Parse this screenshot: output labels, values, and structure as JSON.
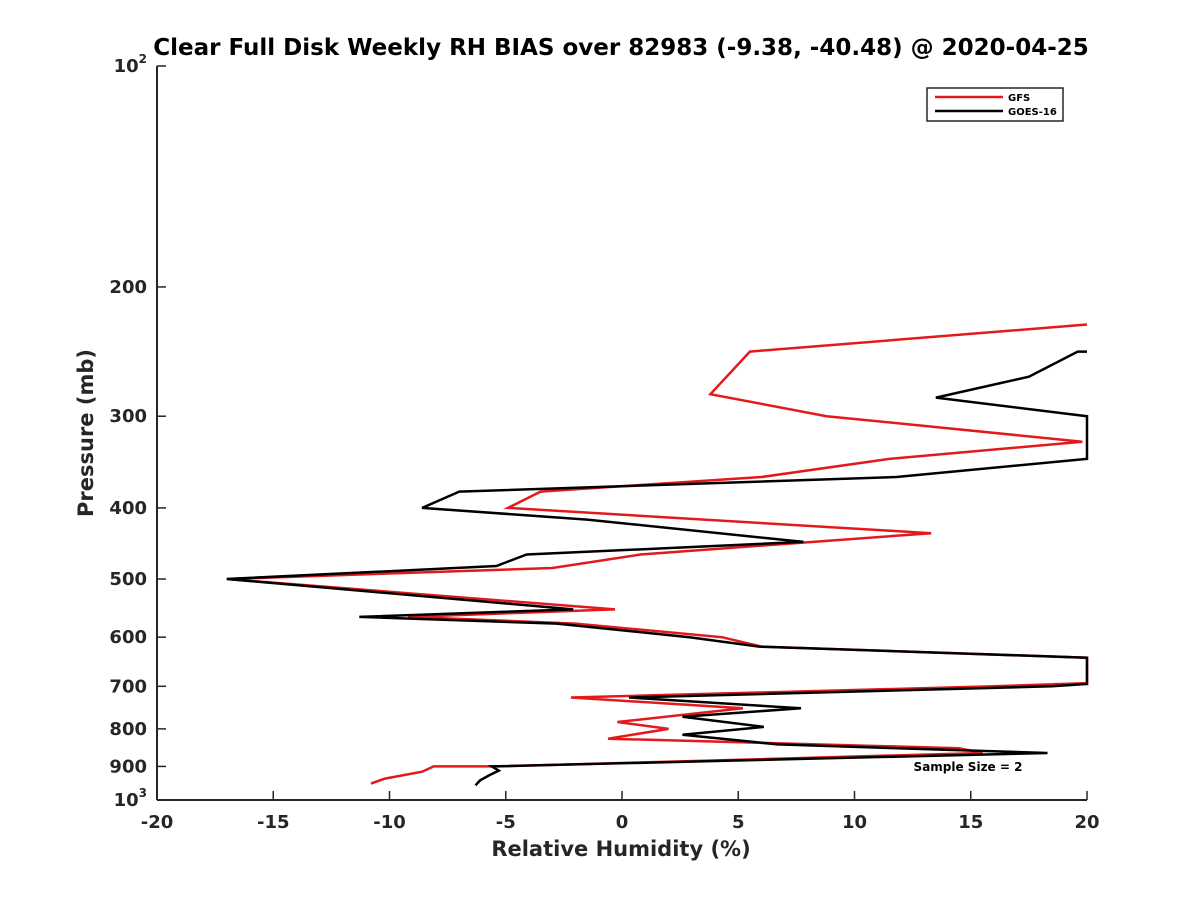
{
  "chart_data": {
    "type": "line",
    "title": "Clear Full Disk Weekly RH BIAS over 82983 (-9.38, -40.48) @ 2020-04-25",
    "xlabel": "Relative Humidity (%)",
    "ylabel": "Pressure (mb)",
    "xlim": [
      -20,
      20
    ],
    "ylim": [
      100,
      1000
    ],
    "yscale": "log",
    "y_reversed": true,
    "x_ticks": [
      -20,
      -15,
      -10,
      -5,
      0,
      5,
      10,
      15,
      20
    ],
    "x_tick_labels": [
      "-20",
      "-15",
      "-10",
      "-5",
      "0",
      "5",
      "10",
      "15",
      "20"
    ],
    "y_ticks": [
      200,
      300,
      400,
      500,
      600,
      700,
      800,
      900
    ],
    "y_tick_labels": [
      "200",
      "300",
      "400",
      "500",
      "600",
      "700",
      "800",
      "900"
    ],
    "y_end_ticks": [
      {
        "value": 100,
        "base": "10",
        "exp": "2"
      },
      {
        "value": 1000,
        "base": "10",
        "exp": "3"
      }
    ],
    "legend": {
      "position": "top-right",
      "entries": [
        "GFS",
        "GOES-16"
      ]
    },
    "annotation": "Sample Size = 2",
    "series": [
      {
        "name": "GFS",
        "color": "#e31a1c",
        "points": [
          [
            20,
            225
          ],
          [
            5.5,
            245
          ],
          [
            3.8,
            280
          ],
          [
            8.8,
            300
          ],
          [
            19.8,
            325
          ],
          [
            11.5,
            343
          ],
          [
            6,
            363
          ],
          [
            -3.5,
            380
          ],
          [
            -4.9,
            400
          ],
          [
            13.3,
            433
          ],
          [
            0.8,
            463
          ],
          [
            -3,
            483
          ],
          [
            -17,
            500
          ],
          [
            -0.3,
            550
          ],
          [
            -9.2,
            563
          ],
          [
            -2,
            575
          ],
          [
            4.3,
            600
          ],
          [
            6,
            618
          ],
          [
            20,
            640
          ],
          [
            20,
            693
          ],
          [
            16,
            700
          ],
          [
            -2.2,
            725
          ],
          [
            5.2,
            750
          ],
          [
            -0.2,
            783
          ],
          [
            2,
            800
          ],
          [
            -0.6,
            825
          ],
          [
            14.5,
            850
          ],
          [
            15.5,
            863
          ],
          [
            -5.3,
            900
          ],
          [
            -8.1,
            900
          ],
          [
            -8.6,
            915
          ],
          [
            -10.2,
            935
          ],
          [
            -10.8,
            950
          ]
        ]
      },
      {
        "name": "GOES-16",
        "color": "#000000",
        "points": [
          [
            20,
            245
          ],
          [
            19.6,
            245
          ],
          [
            17.5,
            265
          ],
          [
            13.5,
            283
          ],
          [
            20,
            300
          ],
          [
            20,
            343
          ],
          [
            11.8,
            363
          ],
          [
            -7,
            380
          ],
          [
            -8.6,
            400
          ],
          [
            -1.5,
            415
          ],
          [
            7.8,
            445
          ],
          [
            -4.1,
            463
          ],
          [
            -5.4,
            480
          ],
          [
            -17,
            500
          ],
          [
            -2.1,
            550
          ],
          [
            -11.3,
            563
          ],
          [
            -2.8,
            575
          ],
          [
            2.9,
            600
          ],
          [
            5.9,
            618
          ],
          [
            20,
            640
          ],
          [
            20,
            695
          ],
          [
            18.5,
            700
          ],
          [
            0.3,
            725
          ],
          [
            7.7,
            750
          ],
          [
            2.6,
            770
          ],
          [
            6.1,
            795
          ],
          [
            2.6,
            815
          ],
          [
            6.7,
            840
          ],
          [
            18.3,
            863
          ],
          [
            -5.6,
            900
          ],
          [
            -5.3,
            912
          ],
          [
            -5.7,
            925
          ],
          [
            -6.1,
            940
          ],
          [
            -6.3,
            955
          ]
        ]
      }
    ]
  }
}
